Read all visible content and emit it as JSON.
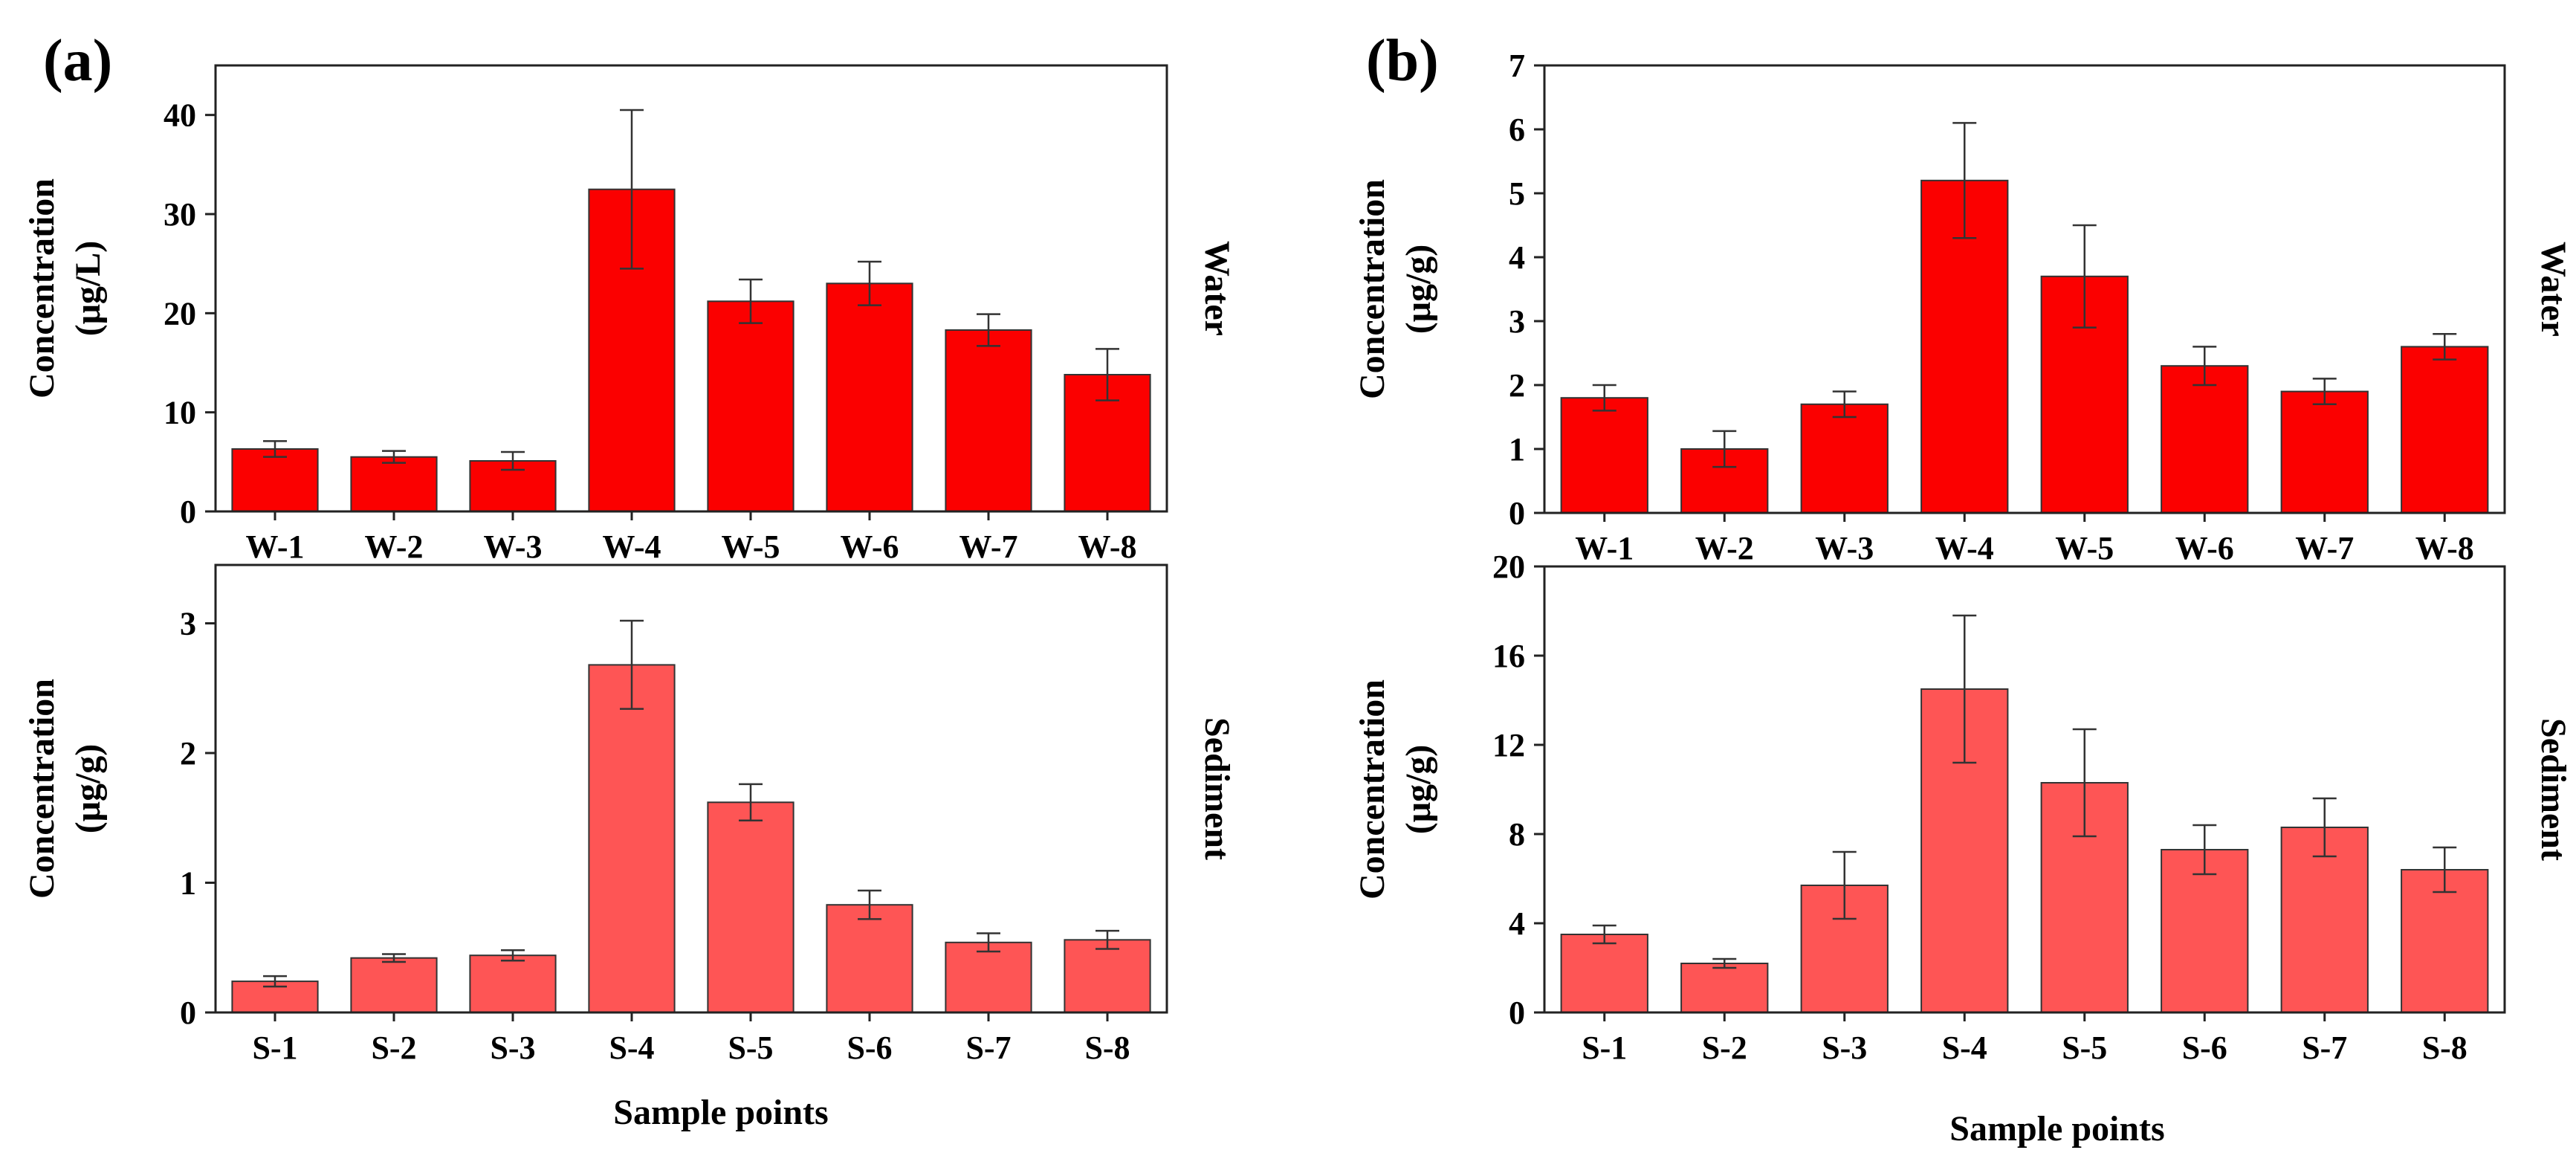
{
  "panels": [
    {
      "letter": "(a)",
      "xlabel": "Sample points"
    },
    {
      "letter": "(b)",
      "xlabel": "Sample points"
    }
  ],
  "chart_data": [
    {
      "type": "bar",
      "panel": "(a)",
      "position": "top",
      "title": "",
      "ylabel": [
        "Concentration",
        "(μg/L)"
      ],
      "side_label": "Water",
      "categories": [
        "W-1",
        "W-2",
        "W-3",
        "W-4",
        "W-5",
        "W-6",
        "W-7",
        "W-8"
      ],
      "values": [
        6.3,
        5.5,
        5.1,
        32.5,
        21.2,
        23.0,
        18.3,
        13.8
      ],
      "errors": [
        0.8,
        0.6,
        0.9,
        8.0,
        2.2,
        2.2,
        1.6,
        2.6
      ],
      "ylim": [
        0,
        45
      ],
      "yticks": [
        0,
        10,
        20,
        30,
        40
      ],
      "color": "#fb0000"
    },
    {
      "type": "bar",
      "panel": "(a)",
      "position": "bottom",
      "title": "",
      "ylabel": [
        "Concentration",
        "(μg/g)"
      ],
      "side_label": "Sediment",
      "categories": [
        "S-1",
        "S-2",
        "S-3",
        "S-4",
        "S-5",
        "S-6",
        "S-7",
        "S-8"
      ],
      "values": [
        0.24,
        0.42,
        0.44,
        2.68,
        1.62,
        0.83,
        0.54,
        0.56
      ],
      "errors": [
        0.04,
        0.03,
        0.04,
        0.34,
        0.14,
        0.11,
        0.07,
        0.07
      ],
      "ylim": [
        0,
        3.45
      ],
      "yticks": [
        0,
        1,
        2,
        3
      ],
      "color": "#fe5555"
    },
    {
      "type": "bar",
      "panel": "(b)",
      "position": "top",
      "title": "",
      "ylabel": [
        "Concentration",
        "(μg/g)"
      ],
      "side_label": "Water",
      "categories": [
        "W-1",
        "W-2",
        "W-3",
        "W-4",
        "W-5",
        "W-6",
        "W-7",
        "W-8"
      ],
      "values": [
        1.8,
        1.0,
        1.7,
        5.2,
        3.7,
        2.3,
        1.9,
        2.6
      ],
      "errors": [
        0.2,
        0.28,
        0.2,
        0.9,
        0.8,
        0.3,
        0.2,
        0.2
      ],
      "ylim": [
        0,
        7
      ],
      "yticks": [
        0,
        1,
        2,
        3,
        4,
        5,
        6,
        7
      ],
      "color": "#fb0000"
    },
    {
      "type": "bar",
      "panel": "(b)",
      "position": "bottom",
      "title": "",
      "ylabel": [
        "Concentration",
        "(μg/g)"
      ],
      "side_label": "Sediment",
      "categories": [
        "S-1",
        "S-2",
        "S-3",
        "S-4",
        "S-5",
        "S-6",
        "S-7",
        "S-8"
      ],
      "values": [
        3.5,
        2.2,
        5.7,
        14.5,
        10.3,
        7.3,
        8.3,
        6.4
      ],
      "errors": [
        0.4,
        0.2,
        1.5,
        3.3,
        2.4,
        1.1,
        1.3,
        1.0
      ],
      "ylim": [
        0,
        20
      ],
      "yticks": [
        0,
        4,
        8,
        12,
        16,
        20
      ],
      "color": "#fe5555"
    }
  ]
}
